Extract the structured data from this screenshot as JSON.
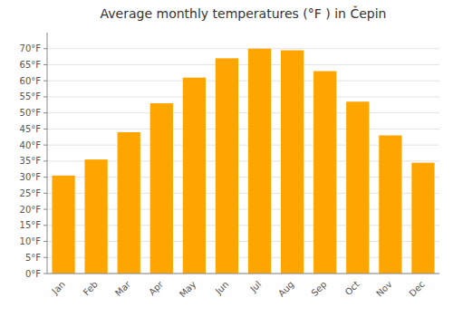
{
  "chart_data": {
    "type": "bar",
    "title": "Average monthly temperatures (°F ) in Čepin",
    "categories": [
      "Jan",
      "Feb",
      "Mar",
      "Apr",
      "May",
      "Jun",
      "Jul",
      "Aug",
      "Sep",
      "Oct",
      "Nov",
      "Dec"
    ],
    "values": [
      30.5,
      35.5,
      44,
      53,
      61,
      67,
      70,
      69.5,
      63,
      53.5,
      43,
      34.5
    ],
    "color": "#FFA500",
    "ylim": [
      0,
      75
    ],
    "yticks": [
      {
        "value": 0,
        "label": "0°F"
      },
      {
        "value": 5,
        "label": "5°F"
      },
      {
        "value": 10,
        "label": "10°F"
      },
      {
        "value": 15,
        "label": "15°F"
      },
      {
        "value": 20,
        "label": "20°F"
      },
      {
        "value": 25,
        "label": "25°F"
      },
      {
        "value": 30,
        "label": "30°F"
      },
      {
        "value": 35,
        "label": "35°F"
      },
      {
        "value": 40,
        "label": "40°F"
      },
      {
        "value": 45,
        "label": "45°F"
      },
      {
        "value": 50,
        "label": "50°F"
      },
      {
        "value": 55,
        "label": "55°F"
      },
      {
        "value": 60,
        "label": "60°F"
      },
      {
        "value": 65,
        "label": "65°F"
      },
      {
        "value": 70,
        "label": "70°F"
      }
    ],
    "grid": true
  }
}
